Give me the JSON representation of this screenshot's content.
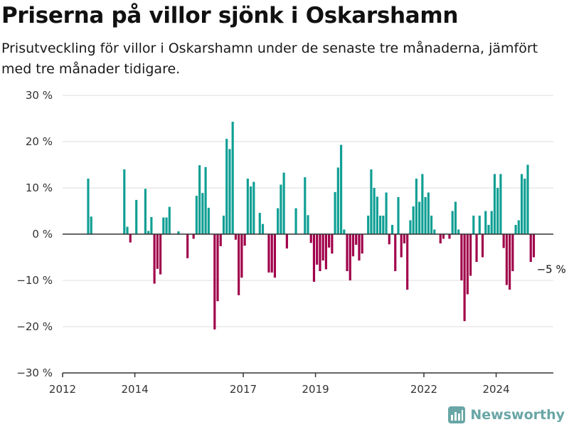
{
  "header": {
    "title": "Priserna på villor sjönk i Oskarshamn",
    "subtitle": "Prisutveckling för villor i Oskarshamn under de senaste tre månaderna, jämfört med tre månader tidigare."
  },
  "brand": {
    "name": "Newsworthy",
    "icon": "newsworthy-logo-icon",
    "color": "#6aa6a6"
  },
  "chart_data": {
    "type": "bar",
    "title": "Priserna på villor sjönk i Oskarshamn",
    "subtitle": "Prisutveckling för villor i Oskarshamn under de senaste tre månaderna, jämfört med tre månader tidigare.",
    "xlabel": "",
    "ylabel": "",
    "ylim": [
      -30,
      30
    ],
    "xlim": [
      "2012-01",
      "2025-08"
    ],
    "y_ticks": [
      {
        "value": -30,
        "label": "−30 %"
      },
      {
        "value": -20,
        "label": "−20 %"
      },
      {
        "value": -10,
        "label": "−10 %"
      },
      {
        "value": 0,
        "label": "0 %"
      },
      {
        "value": 10,
        "label": "10 %"
      },
      {
        "value": 20,
        "label": "20 %"
      },
      {
        "value": 30,
        "label": "30 %"
      }
    ],
    "x_ticks": [
      {
        "date": "2012-01",
        "label": "2012"
      },
      {
        "date": "2014-01",
        "label": "2014"
      },
      {
        "date": "2017-01",
        "label": "2017"
      },
      {
        "date": "2019-01",
        "label": "2019"
      },
      {
        "date": "2022-01",
        "label": "2022"
      },
      {
        "date": "2024-01",
        "label": "2024"
      }
    ],
    "grid": true,
    "colors": {
      "positive": "#0f9f94",
      "negative": "#a0004a",
      "grid": "#dddddd",
      "zero": "#333333"
    },
    "annotation": {
      "date": "2025-01",
      "label": "−5 %"
    },
    "series": [
      {
        "values": [
          {
            "date": "2012-09",
            "value": 12.0
          },
          {
            "date": "2012-10",
            "value": 3.8
          },
          {
            "date": "2013-09",
            "value": 14.0
          },
          {
            "date": "2013-10",
            "value": 1.6
          },
          {
            "date": "2013-11",
            "value": -1.8
          },
          {
            "date": "2014-01",
            "value": 7.4
          },
          {
            "date": "2014-04",
            "value": 9.8
          },
          {
            "date": "2014-05",
            "value": 0.7
          },
          {
            "date": "2014-06",
            "value": 3.7
          },
          {
            "date": "2014-07",
            "value": -10.7
          },
          {
            "date": "2014-08",
            "value": -7.5
          },
          {
            "date": "2014-09",
            "value": -8.7
          },
          {
            "date": "2014-10",
            "value": 3.6
          },
          {
            "date": "2014-11",
            "value": 3.6
          },
          {
            "date": "2014-12",
            "value": 5.9
          },
          {
            "date": "2015-03",
            "value": 0.6
          },
          {
            "date": "2015-06",
            "value": -5.2
          },
          {
            "date": "2015-08",
            "value": -1.0
          },
          {
            "date": "2015-09",
            "value": 8.3
          },
          {
            "date": "2015-10",
            "value": 14.9
          },
          {
            "date": "2015-11",
            "value": 8.9
          },
          {
            "date": "2015-12",
            "value": 14.5
          },
          {
            "date": "2016-01",
            "value": 5.7
          },
          {
            "date": "2016-03",
            "value": -20.6
          },
          {
            "date": "2016-04",
            "value": -14.5
          },
          {
            "date": "2016-05",
            "value": -2.6
          },
          {
            "date": "2016-06",
            "value": 4.0
          },
          {
            "date": "2016-07",
            "value": 20.6
          },
          {
            "date": "2016-08",
            "value": 18.4
          },
          {
            "date": "2016-09",
            "value": 24.3
          },
          {
            "date": "2016-10",
            "value": -1.2
          },
          {
            "date": "2016-11",
            "value": -13.2
          },
          {
            "date": "2016-12",
            "value": -9.4
          },
          {
            "date": "2017-01",
            "value": -2.5
          },
          {
            "date": "2017-02",
            "value": 12.0
          },
          {
            "date": "2017-03",
            "value": 10.3
          },
          {
            "date": "2017-04",
            "value": 11.3
          },
          {
            "date": "2017-06",
            "value": 4.6
          },
          {
            "date": "2017-07",
            "value": 2.2
          },
          {
            "date": "2017-09",
            "value": -8.3
          },
          {
            "date": "2017-10",
            "value": -8.3
          },
          {
            "date": "2017-11",
            "value": -9.4
          },
          {
            "date": "2017-12",
            "value": 5.6
          },
          {
            "date": "2018-01",
            "value": 10.7
          },
          {
            "date": "2018-02",
            "value": 13.3
          },
          {
            "date": "2018-03",
            "value": -3.1
          },
          {
            "date": "2018-06",
            "value": 5.6
          },
          {
            "date": "2018-09",
            "value": 12.3
          },
          {
            "date": "2018-10",
            "value": 4.1
          },
          {
            "date": "2018-11",
            "value": -1.9
          },
          {
            "date": "2018-12",
            "value": -10.3
          },
          {
            "date": "2019-01",
            "value": -6.6
          },
          {
            "date": "2019-02",
            "value": -8.0
          },
          {
            "date": "2019-03",
            "value": -5.7
          },
          {
            "date": "2019-04",
            "value": -7.6
          },
          {
            "date": "2019-05",
            "value": -2.9
          },
          {
            "date": "2019-06",
            "value": -4.2
          },
          {
            "date": "2019-07",
            "value": 9.1
          },
          {
            "date": "2019-08",
            "value": 14.4
          },
          {
            "date": "2019-09",
            "value": 19.3
          },
          {
            "date": "2019-10",
            "value": 1.0
          },
          {
            "date": "2019-11",
            "value": -8.0
          },
          {
            "date": "2019-12",
            "value": -10.0
          },
          {
            "date": "2020-01",
            "value": -4.8
          },
          {
            "date": "2020-02",
            "value": -2.3
          },
          {
            "date": "2020-03",
            "value": -5.7
          },
          {
            "date": "2020-04",
            "value": -4.2
          },
          {
            "date": "2020-06",
            "value": 4.0
          },
          {
            "date": "2020-07",
            "value": 14.0
          },
          {
            "date": "2020-08",
            "value": 10.0
          },
          {
            "date": "2020-09",
            "value": 8.1
          },
          {
            "date": "2020-10",
            "value": 4.0
          },
          {
            "date": "2020-11",
            "value": 4.0
          },
          {
            "date": "2020-12",
            "value": 9.0
          },
          {
            "date": "2021-01",
            "value": -2.2
          },
          {
            "date": "2021-02",
            "value": 2.0
          },
          {
            "date": "2021-03",
            "value": -8.0
          },
          {
            "date": "2021-04",
            "value": 8.0
          },
          {
            "date": "2021-05",
            "value": -5.0
          },
          {
            "date": "2021-06",
            "value": -2.0
          },
          {
            "date": "2021-07",
            "value": -12.0
          },
          {
            "date": "2021-08",
            "value": 3.0
          },
          {
            "date": "2021-09",
            "value": 6.0
          },
          {
            "date": "2021-10",
            "value": 12.0
          },
          {
            "date": "2021-11",
            "value": 7.0
          },
          {
            "date": "2021-12",
            "value": 13.0
          },
          {
            "date": "2022-01",
            "value": 8.0
          },
          {
            "date": "2022-02",
            "value": 9.0
          },
          {
            "date": "2022-03",
            "value": 4.0
          },
          {
            "date": "2022-04",
            "value": 1.0
          },
          {
            "date": "2022-06",
            "value": -2.0
          },
          {
            "date": "2022-07",
            "value": -1.0
          },
          {
            "date": "2022-09",
            "value": -1.0
          },
          {
            "date": "2022-10",
            "value": 5.0
          },
          {
            "date": "2022-11",
            "value": 7.0
          },
          {
            "date": "2022-12",
            "value": 1.0
          },
          {
            "date": "2023-01",
            "value": -10.0
          },
          {
            "date": "2023-02",
            "value": -18.8
          },
          {
            "date": "2023-03",
            "value": -13.0
          },
          {
            "date": "2023-04",
            "value": -9.0
          },
          {
            "date": "2023-05",
            "value": 4.0
          },
          {
            "date": "2023-06",
            "value": -6.0
          },
          {
            "date": "2023-07",
            "value": 4.0
          },
          {
            "date": "2023-08",
            "value": -5.0
          },
          {
            "date": "2023-09",
            "value": 5.0
          },
          {
            "date": "2023-10",
            "value": 2.0
          },
          {
            "date": "2023-11",
            "value": 5.0
          },
          {
            "date": "2023-12",
            "value": 13.0
          },
          {
            "date": "2024-01",
            "value": 10.0
          },
          {
            "date": "2024-02",
            "value": 13.0
          },
          {
            "date": "2024-03",
            "value": -3.0
          },
          {
            "date": "2024-04",
            "value": -11.0
          },
          {
            "date": "2024-05",
            "value": -12.0
          },
          {
            "date": "2024-06",
            "value": -8.0
          },
          {
            "date": "2024-07",
            "value": 2.0
          },
          {
            "date": "2024-08",
            "value": 3.0
          },
          {
            "date": "2024-09",
            "value": 13.0
          },
          {
            "date": "2024-10",
            "value": 12.0
          },
          {
            "date": "2024-11",
            "value": 15.0
          },
          {
            "date": "2024-12",
            "value": -6.0
          },
          {
            "date": "2025-01",
            "value": -5.0
          }
        ]
      }
    ]
  }
}
